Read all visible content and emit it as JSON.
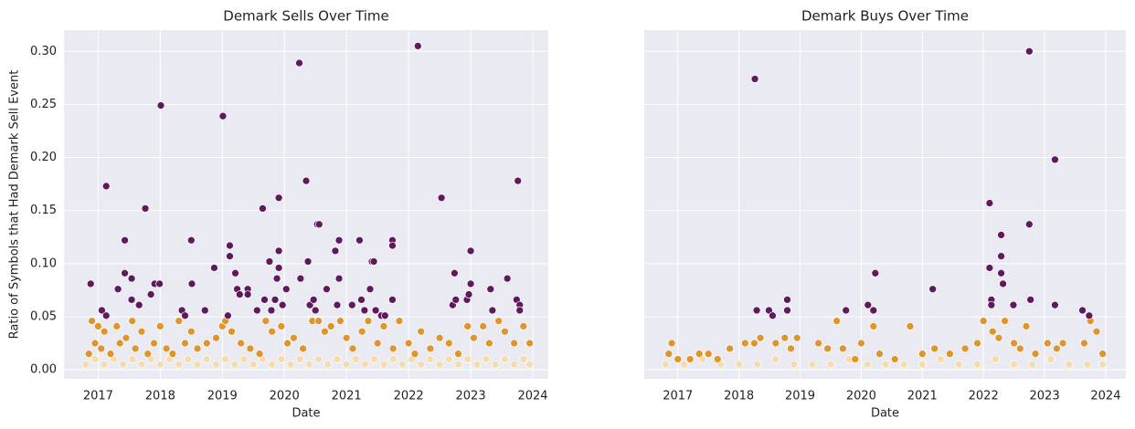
{
  "chart_data": [
    {
      "type": "scatter",
      "title": "Demark Sells Over Time",
      "xlabel": "Date",
      "ylabel": "Ratio of Symbols that Had Demark Sell Event",
      "xlim": [
        2016.45,
        2024.25
      ],
      "ylim": [
        -0.0085,
        0.32
      ],
      "grid": true,
      "xticks": [
        2017,
        2018,
        2019,
        2020,
        2021,
        2022,
        2023,
        2024
      ],
      "yticks": [
        {
          "value": 0,
          "label": "0.00"
        },
        {
          "value": 0.05,
          "label": "0.05"
        },
        {
          "value": 0.1,
          "label": "0.10"
        },
        {
          "value": 0.15,
          "label": "0.15"
        },
        {
          "value": 0.2,
          "label": "0.20"
        },
        {
          "value": 0.25,
          "label": "0.25"
        },
        {
          "value": 0.3,
          "label": "0.30"
        }
      ],
      "series": [
        {
          "color": "#f4dcae",
          "x": [
            2016.8,
            2016.95,
            2017.1,
            2017.25,
            2017.4,
            2017.55,
            2017.7,
            2017.85,
            2018.0,
            2018.15,
            2018.3,
            2018.45,
            2018.6,
            2018.75,
            2018.9,
            2019.05,
            2019.2,
            2019.35,
            2019.5,
            2019.65,
            2019.8,
            2019.95,
            2020.1,
            2020.25,
            2020.4,
            2020.55,
            2020.7,
            2020.85,
            2021.0,
            2021.15,
            2021.3,
            2021.45,
            2021.6,
            2021.75,
            2021.9,
            2022.05,
            2022.2,
            2022.35,
            2022.5,
            2022.65,
            2022.8,
            2022.95,
            2023.1,
            2023.25,
            2023.4,
            2023.55,
            2023.7,
            2023.85,
            2023.95
          ],
          "values": [
            0.005,
            0.01,
            0.005,
            0.01,
            0.005,
            0.01,
            0.005,
            0.01,
            0.005,
            0.01,
            0.005,
            0.01,
            0.005,
            0.01,
            0.005,
            0.01,
            0.005,
            0.01,
            0.005,
            0.01,
            0.005,
            0.01,
            0.005,
            0.01,
            0.005,
            0.01,
            0.005,
            0.01,
            0.005,
            0.01,
            0.005,
            0.01,
            0.005,
            0.01,
            0.005,
            0.01,
            0.005,
            0.01,
            0.005,
            0.01,
            0.005,
            0.01,
            0.005,
            0.01,
            0.005,
            0.01,
            0.005,
            0.01,
            0.005
          ]
        },
        {
          "color": "#dd962e",
          "x": [
            2016.85,
            2016.9,
            2016.95,
            2017.0,
            2017.05,
            2017.1,
            2017.2,
            2017.3,
            2017.35,
            2017.45,
            2017.55,
            2017.6,
            2017.7,
            2017.8,
            2017.9,
            2018.0,
            2018.1,
            2018.2,
            2018.3,
            2018.4,
            2018.5,
            2018.6,
            2018.75,
            2018.9,
            2019.0,
            2019.05,
            2019.15,
            2019.3,
            2019.45,
            2019.6,
            2019.7,
            2019.8,
            2019.95,
            2020.05,
            2020.15,
            2020.3,
            2020.45,
            2020.55,
            2020.65,
            2020.75,
            2020.9,
            2021.0,
            2021.1,
            2021.25,
            2021.35,
            2021.5,
            2021.6,
            2021.75,
            2021.85,
            2022.0,
            2022.1,
            2022.2,
            2022.35,
            2022.5,
            2022.65,
            2022.8,
            2022.95,
            2023.05,
            2023.2,
            2023.3,
            2023.45,
            2023.55,
            2023.7,
            2023.85,
            2023.95
          ],
          "values": [
            0.015,
            0.046,
            0.025,
            0.041,
            0.02,
            0.036,
            0.015,
            0.041,
            0.025,
            0.03,
            0.046,
            0.02,
            0.036,
            0.015,
            0.025,
            0.041,
            0.02,
            0.015,
            0.046,
            0.025,
            0.036,
            0.02,
            0.025,
            0.03,
            0.041,
            0.046,
            0.036,
            0.025,
            0.02,
            0.015,
            0.046,
            0.036,
            0.041,
            0.025,
            0.03,
            0.02,
            0.046,
            0.046,
            0.036,
            0.041,
            0.046,
            0.03,
            0.02,
            0.036,
            0.046,
            0.025,
            0.041,
            0.02,
            0.046,
            0.025,
            0.015,
            0.036,
            0.02,
            0.03,
            0.025,
            0.015,
            0.041,
            0.03,
            0.041,
            0.025,
            0.046,
            0.036,
            0.025,
            0.041,
            0.025
          ]
        },
        {
          "color": "#5e1a5c",
          "x": [
            2016.88,
            2017.06,
            2017.13,
            2017.13,
            2017.32,
            2017.43,
            2017.43,
            2017.54,
            2017.54,
            2017.66,
            2017.76,
            2017.85,
            2017.91,
            2017.99,
            2018.01,
            2018.35,
            2018.4,
            2018.5,
            2018.51,
            2018.72,
            2018.87,
            2019.01,
            2019.09,
            2019.12,
            2019.12,
            2019.21,
            2019.24,
            2019.28,
            2019.41,
            2019.41,
            2019.56,
            2019.65,
            2019.68,
            2019.76,
            2019.79,
            2019.85,
            2019.88,
            2019.91,
            2019.91,
            2019.91,
            2019.97,
            2020.03,
            2020.24,
            2020.26,
            2020.35,
            2020.38,
            2020.41,
            2020.47,
            2020.5,
            2020.53,
            2020.56,
            2020.68,
            2020.82,
            2020.85,
            2020.88,
            2020.88,
            2021.09,
            2021.21,
            2021.24,
            2021.29,
            2021.38,
            2021.41,
            2021.44,
            2021.47,
            2021.56,
            2021.62,
            2021.74,
            2021.74,
            2021.74,
            2022.15,
            2022.53,
            2022.71,
            2022.74,
            2022.76,
            2022.94,
            2022.97,
            2023.0,
            2023.0,
            2023.32,
            2023.35,
            2023.59,
            2023.74,
            2023.76,
            2023.79,
            2023.79
          ],
          "values": [
            0.081,
            0.056,
            0.173,
            0.051,
            0.076,
            0.122,
            0.091,
            0.066,
            0.086,
            0.061,
            0.152,
            0.071,
            0.081,
            0.081,
            0.249,
            0.056,
            0.051,
            0.122,
            0.081,
            0.056,
            0.096,
            0.239,
            0.051,
            0.117,
            0.107,
            0.091,
            0.076,
            0.071,
            0.076,
            0.071,
            0.056,
            0.152,
            0.066,
            0.102,
            0.056,
            0.066,
            0.086,
            0.162,
            0.112,
            0.096,
            0.061,
            0.076,
            0.289,
            0.086,
            0.178,
            0.102,
            0.061,
            0.066,
            0.056,
            0.137,
            0.137,
            0.076,
            0.112,
            0.061,
            0.122,
            0.086,
            0.061,
            0.122,
            0.066,
            0.056,
            0.076,
            0.102,
            0.102,
            0.056,
            0.051,
            0.051,
            0.122,
            0.117,
            0.066,
            0.305,
            0.162,
            0.061,
            0.091,
            0.066,
            0.066,
            0.071,
            0.112,
            0.081,
            0.076,
            0.056,
            0.086,
            0.066,
            0.178,
            0.061,
            0.056
          ]
        }
      ]
    },
    {
      "type": "scatter",
      "title": "Demark Buys Over Time",
      "xlabel": "Date",
      "sharey": true,
      "xlim": [
        2016.45,
        2024.33
      ],
      "ylim": [
        -0.0085,
        0.32
      ],
      "grid": true,
      "xticks": [
        2017,
        2018,
        2019,
        2020,
        2021,
        2022,
        2023,
        2024
      ],
      "yticks": [
        0,
        0.05,
        0.1,
        0.15,
        0.2,
        0.25,
        0.3
      ],
      "series": [
        {
          "color": "#f4dcae",
          "x": [
            2016.8,
            2017.1,
            2017.4,
            2017.7,
            2018.0,
            2018.3,
            2018.6,
            2018.9,
            2019.2,
            2019.5,
            2019.8,
            2020.1,
            2020.4,
            2020.7,
            2021.0,
            2021.3,
            2021.6,
            2021.9,
            2022.2,
            2022.5,
            2022.8,
            2023.1,
            2023.4,
            2023.7,
            2023.95
          ],
          "values": [
            0.005,
            0.005,
            0.01,
            0.005,
            0.005,
            0.005,
            0.01,
            0.005,
            0.005,
            0.005,
            0.01,
            0.005,
            0.005,
            0.005,
            0.005,
            0.01,
            0.005,
            0.005,
            0.01,
            0.005,
            0.005,
            0.01,
            0.005,
            0.005,
            0.005
          ]
        },
        {
          "color": "#dd962e",
          "x": [
            2016.85,
            2016.9,
            2017.0,
            2017.2,
            2017.35,
            2017.5,
            2017.65,
            2017.85,
            2018.1,
            2018.25,
            2018.35,
            2018.6,
            2018.75,
            2018.85,
            2018.95,
            2019.3,
            2019.45,
            2019.6,
            2019.7,
            2019.9,
            2020.0,
            2020.2,
            2020.3,
            2020.55,
            2020.8,
            2021.0,
            2021.2,
            2021.45,
            2021.7,
            2021.9,
            2022.0,
            2022.15,
            2022.25,
            2022.35,
            2022.5,
            2022.6,
            2022.7,
            2022.85,
            2023.05,
            2023.2,
            2023.3,
            2023.65,
            2023.75,
            2023.85,
            2023.95
          ],
          "values": [
            0.015,
            0.025,
            0.01,
            0.01,
            0.015,
            0.015,
            0.01,
            0.02,
            0.025,
            0.025,
            0.03,
            0.025,
            0.03,
            0.02,
            0.03,
            0.025,
            0.02,
            0.046,
            0.02,
            0.01,
            0.025,
            0.041,
            0.015,
            0.01,
            0.041,
            0.015,
            0.02,
            0.015,
            0.02,
            0.025,
            0.046,
            0.036,
            0.03,
            0.046,
            0.025,
            0.02,
            0.041,
            0.015,
            0.025,
            0.02,
            0.025,
            0.025,
            0.046,
            0.036,
            0.015
          ]
        },
        {
          "color": "#5e1a5c",
          "x": [
            2018.26,
            2018.29,
            2018.49,
            2018.55,
            2018.79,
            2018.79,
            2019.75,
            2020.11,
            2020.2,
            2020.23,
            2021.17,
            2022.1,
            2022.1,
            2022.13,
            2022.13,
            2022.29,
            2022.29,
            2022.29,
            2022.32,
            2022.49,
            2022.75,
            2022.75,
            2022.77,
            2023.17,
            2023.17,
            2023.62,
            2023.73
          ],
          "values": [
            0.274,
            0.056,
            0.056,
            0.051,
            0.066,
            0.056,
            0.056,
            0.061,
            0.056,
            0.091,
            0.076,
            0.157,
            0.096,
            0.066,
            0.061,
            0.127,
            0.107,
            0.091,
            0.081,
            0.061,
            0.3,
            0.137,
            0.066,
            0.198,
            0.061,
            0.056,
            0.051
          ]
        }
      ]
    }
  ]
}
